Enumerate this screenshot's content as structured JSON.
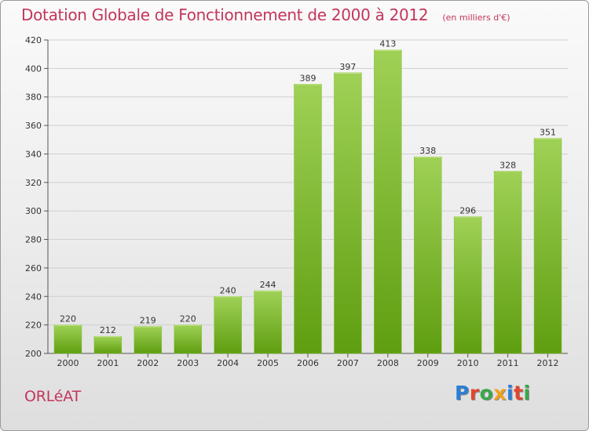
{
  "title": "Dotation Globale de Fonctionnement de 2000 à 2012",
  "subtitle": "(en milliers d'€)",
  "commune": "ORLéAT",
  "logo": {
    "text": "Proxiti",
    "colors": [
      "#2a7fd4",
      "#e2462f",
      "#3aa84a",
      "#f1a21b",
      "#2a7fd4",
      "#e2462f",
      "#3aa84a"
    ]
  },
  "colors": {
    "title": "#c2365b",
    "bar_top": "#9fd156",
    "bar_bottom": "#5f9e10",
    "grid": "#cfcfcf"
  },
  "chart_data": {
    "type": "bar",
    "title": "Dotation Globale de Fonctionnement de 2000 à 2012",
    "subtitle": "(en milliers d'€)",
    "xlabel": "",
    "ylabel": "",
    "categories": [
      "2000",
      "2001",
      "2002",
      "2003",
      "2004",
      "2005",
      "2006",
      "2007",
      "2008",
      "2009",
      "2010",
      "2011",
      "2012"
    ],
    "values": [
      220,
      212,
      219,
      220,
      240,
      244,
      389,
      397,
      413,
      338,
      296,
      328,
      351
    ],
    "ylim": [
      200,
      420
    ],
    "yticks": [
      200,
      220,
      240,
      260,
      280,
      300,
      320,
      340,
      360,
      380,
      400,
      420
    ],
    "grid": true,
    "legend": "none"
  }
}
